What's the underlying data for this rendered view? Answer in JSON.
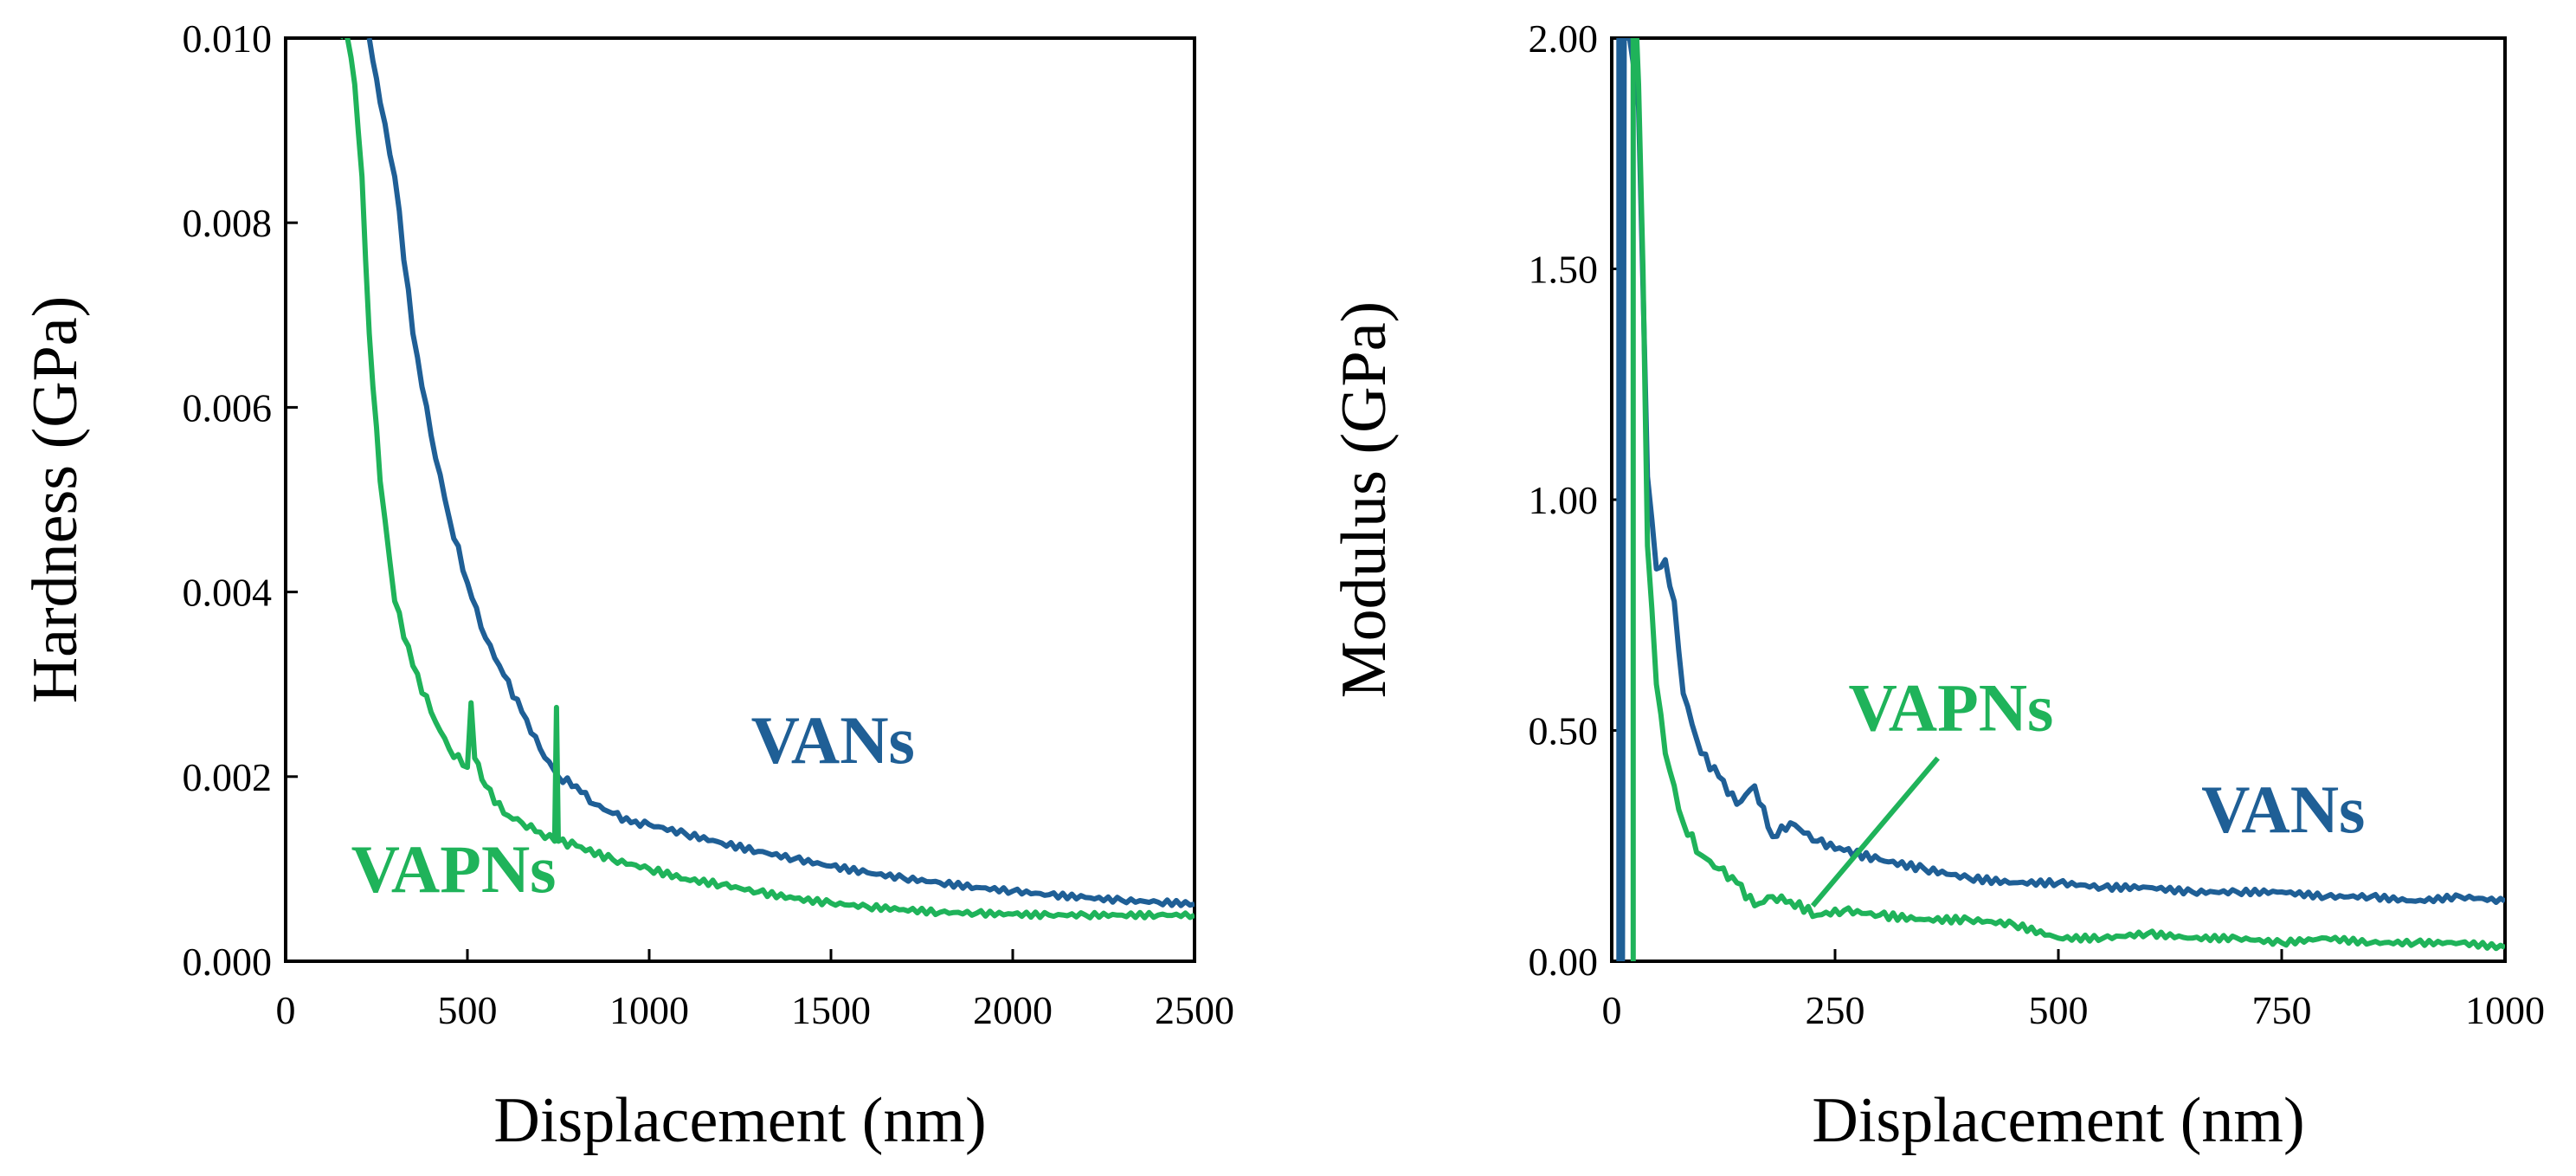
{
  "colors": {
    "vans": "#1f5f96",
    "vapns": "#1fb35a",
    "axes": "#000000",
    "background": "#ffffff"
  },
  "chart_data": [
    {
      "type": "line",
      "title": "",
      "xlabel": "Displacement  (nm)",
      "ylabel": "Hardness  (GPa)",
      "xlim": [
        0,
        2500
      ],
      "ylim": [
        0,
        0.01
      ],
      "xticks": [
        0,
        500,
        1000,
        1500,
        2000,
        2500
      ],
      "xtick_labels": [
        "0",
        "500",
        "1000",
        "1500",
        "2000",
        "2500"
      ],
      "yticks": [
        0,
        0.002,
        0.004,
        0.006,
        0.008,
        0.01
      ],
      "ytick_labels": [
        "0.000",
        "0.002",
        "0.004",
        "0.006",
        "0.008",
        "0.010"
      ],
      "grid": false,
      "series": [
        {
          "name": "VANs",
          "color": "#1f5f96",
          "x": [
            230,
            260,
            300,
            350,
            400,
            450,
            500,
            550,
            600,
            650,
            700,
            750,
            800,
            850,
            900,
            950,
            1000,
            1100,
            1200,
            1300,
            1400,
            1500,
            1600,
            1700,
            1800,
            1900,
            2000,
            2100,
            2200,
            2300,
            2400,
            2500
          ],
          "y": [
            0.01,
            0.0093,
            0.0085,
            0.0068,
            0.0057,
            0.0048,
            0.0041,
            0.0035,
            0.0031,
            0.0027,
            0.0023,
            0.002,
            0.0019,
            0.0017,
            0.0016,
            0.0015,
            0.00148,
            0.00138,
            0.00128,
            0.00119,
            0.00111,
            0.00103,
            0.00096,
            0.0009,
            0.00085,
            0.0008,
            0.00076,
            0.00072,
            0.00069,
            0.00066,
            0.00064,
            0.00062
          ]
        },
        {
          "name": "VAPNs",
          "color": "#1fb35a",
          "x": [
            150,
            170,
            190,
            210,
            230,
            260,
            300,
            350,
            400,
            450,
            500,
            510,
            520,
            550,
            600,
            650,
            700,
            740,
            745,
            750,
            800,
            900,
            1000,
            1100,
            1200,
            1300,
            1400,
            1500,
            1600,
            1700,
            1800,
            1900,
            2000,
            2100,
            2200,
            2300,
            2400,
            2500
          ],
          "y": [
            0.01,
            0.01,
            0.0095,
            0.0085,
            0.0068,
            0.0052,
            0.0039,
            0.0032,
            0.0027,
            0.0023,
            0.0021,
            0.0028,
            0.0022,
            0.0019,
            0.0016,
            0.0015,
            0.0014,
            0.0013,
            0.00275,
            0.0013,
            0.00125,
            0.0011,
            0.001,
            0.00089,
            0.00083,
            0.00075,
            0.00068,
            0.00063,
            0.00059,
            0.00056,
            0.00053,
            0.00052,
            0.00051,
            0.0005,
            0.0005,
            0.0005,
            0.0005,
            0.0005
          ]
        }
      ],
      "annotations": [
        {
          "text": "VANs",
          "color": "#1f5f96",
          "x": 1280,
          "y": 0.00215
        },
        {
          "text": "VAPNs",
          "color": "#1fb35a",
          "x": 180,
          "y": 0.00075
        }
      ]
    },
    {
      "type": "line",
      "title": "",
      "xlabel": "Displacement  (nm)",
      "ylabel": "Modulus  (GPa)",
      "xlim": [
        0,
        1000
      ],
      "ylim": [
        0,
        2
      ],
      "xticks": [
        0,
        250,
        500,
        750,
        1000
      ],
      "xtick_labels": [
        "0",
        "250",
        "500",
        "750",
        "1000"
      ],
      "yticks": [
        0,
        0.5,
        1,
        1.5,
        2
      ],
      "ytick_labels": [
        "0.00",
        "0.50",
        "1.00",
        "1.50",
        "2.00"
      ],
      "grid": false,
      "series": [
        {
          "name": "VANs",
          "color": "#1f5f96",
          "x": [
            8,
            8,
            9,
            10,
            12,
            14,
            16,
            20,
            30,
            40,
            50,
            60,
            70,
            80,
            100,
            120,
            140,
            160,
            180,
            200,
            230,
            260,
            300,
            350,
            400,
            450,
            500,
            550,
            600,
            650,
            700,
            750,
            800,
            850,
            900,
            950,
            1000
          ],
          "y": [
            0.0,
            2.0,
            2.0,
            0.0,
            0.0,
            2.0,
            2.0,
            2.0,
            1.85,
            1.05,
            0.85,
            0.87,
            0.78,
            0.58,
            0.45,
            0.4,
            0.34,
            0.38,
            0.27,
            0.3,
            0.26,
            0.24,
            0.22,
            0.2,
            0.18,
            0.17,
            0.17,
            0.16,
            0.16,
            0.15,
            0.15,
            0.15,
            0.14,
            0.14,
            0.13,
            0.14,
            0.13
          ]
        },
        {
          "name": "VAPNs",
          "color": "#1fb35a",
          "x": [
            24,
            24,
            26,
            28,
            30,
            35,
            40,
            50,
            60,
            70,
            80,
            100,
            120,
            140,
            160,
            180,
            200,
            230,
            260,
            300,
            350,
            400,
            450,
            500,
            550,
            600,
            650,
            700,
            750,
            800,
            850,
            900,
            950,
            1000
          ],
          "y": [
            0.0,
            2.0,
            2.0,
            2.0,
            1.9,
            1.5,
            0.9,
            0.6,
            0.45,
            0.38,
            0.3,
            0.23,
            0.2,
            0.17,
            0.12,
            0.14,
            0.13,
            0.1,
            0.11,
            0.1,
            0.09,
            0.09,
            0.08,
            0.05,
            0.05,
            0.06,
            0.05,
            0.05,
            0.04,
            0.05,
            0.04,
            0.04,
            0.04,
            0.03
          ]
        }
      ],
      "annotations": [
        {
          "text": "VANs",
          "color": "#1f5f96",
          "x": 660,
          "y": 0.28
        },
        {
          "text": "VAPNs",
          "color": "#1fb35a",
          "x": 265,
          "y": 0.5
        }
      ],
      "leader_lines": [
        {
          "color": "#1fb35a",
          "from": [
            365,
            0.44
          ],
          "to": [
            225,
            0.12
          ]
        }
      ]
    }
  ]
}
